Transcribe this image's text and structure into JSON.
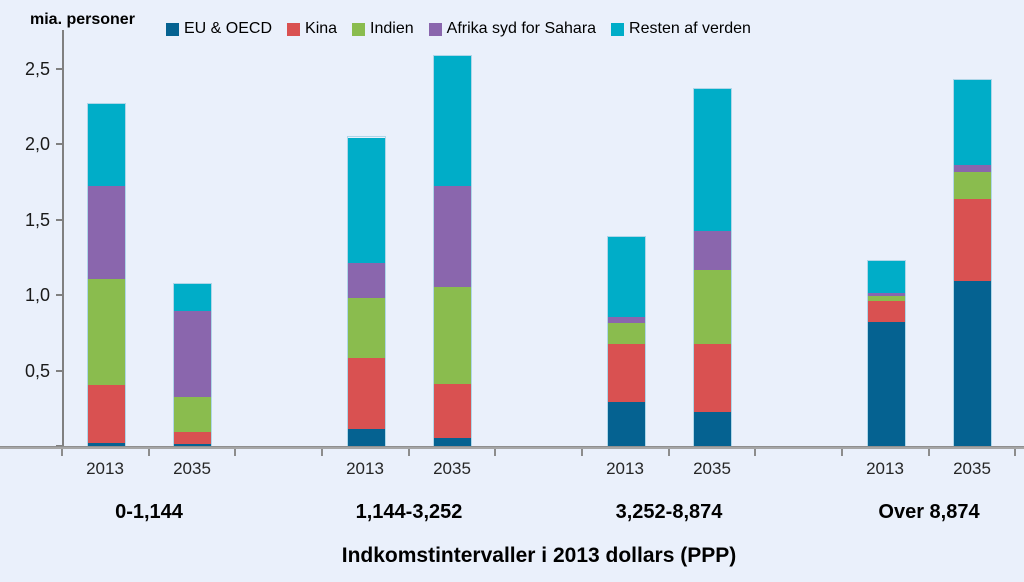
{
  "page": {
    "background": "#EAF0FB"
  },
  "unit_label": "mia. personer",
  "x_axis_title": "Indkomstintervaller i 2013 dollars (PPP)",
  "colors": {
    "eu_oecd": "#056291",
    "kina": "#D95151",
    "indien": "#8ABC4E",
    "afrika": "#8A66AD",
    "resten": "#00ADC8",
    "axis": "#A6A6A6",
    "bar_border": "#AFD6E8",
    "background": "#EAF0FB"
  },
  "legend": [
    {
      "label": "EU & OECD",
      "color": "#056291"
    },
    {
      "label": "Kina",
      "color": "#D95151"
    },
    {
      "label": "Indien",
      "color": "#8ABC4E"
    },
    {
      "label": "Afrika syd for Sahara",
      "color": "#8A66AD"
    },
    {
      "label": "Resten af verden",
      "color": "#00ADC8"
    }
  ],
  "y_ticks": [
    {
      "label": "2,5",
      "value": 2.5
    },
    {
      "label": "2,0",
      "value": 2.0
    },
    {
      "label": "1,5",
      "value": 1.5
    },
    {
      "label": "1,0",
      "value": 1.0
    },
    {
      "label": "0,5",
      "value": 0.5
    },
    {
      "label": "-",
      "value": 0
    }
  ],
  "chart_data": {
    "type": "bar",
    "stacked": true,
    "title": "",
    "xlabel": "Indkomstintervaller i 2013 dollars (PPP)",
    "ylabel": "mia. personer",
    "ylim": [
      0,
      2.5
    ],
    "grid": false,
    "legend_position": "top",
    "groups": [
      "0-1,144",
      "1,144-3,252",
      "3,252-8,874",
      "Over 8,874"
    ],
    "years_per_group": [
      "2013",
      "2035"
    ],
    "bar_order_note": "8 bars: one per year per group, values in series arrays run group1-2013, group1-2035, group2-2013, group2-2035, group3-2013, group3-2035, group4-2013, group4-2035; stacking bottom-to-top follows series order",
    "series": [
      {
        "name": "EU & OECD",
        "color": "#056291",
        "values": [
          0.03,
          0.02,
          0.12,
          0.06,
          0.3,
          0.23,
          0.83,
          1.1
        ]
      },
      {
        "name": "Kina",
        "color": "#D95151",
        "values": [
          0.38,
          0.08,
          0.47,
          0.36,
          0.38,
          0.45,
          0.14,
          0.54
        ]
      },
      {
        "name": "Indien",
        "color": "#8ABC4E",
        "values": [
          0.7,
          0.23,
          0.4,
          0.64,
          0.14,
          0.49,
          0.03,
          0.18
        ]
      },
      {
        "name": "Afrika syd for Sahara",
        "color": "#8A66AD",
        "values": [
          0.62,
          0.57,
          0.23,
          0.67,
          0.04,
          0.26,
          0.02,
          0.05
        ]
      },
      {
        "name": "Resten af verden",
        "color": "#00ADC8",
        "values": [
          0.54,
          0.18,
          0.83,
          0.86,
          0.53,
          0.94,
          0.21,
          0.56
        ]
      }
    ],
    "bar_totals": [
      2.27,
      1.08,
      2.05,
      2.59,
      1.39,
      2.37,
      1.23,
      2.43
    ]
  }
}
